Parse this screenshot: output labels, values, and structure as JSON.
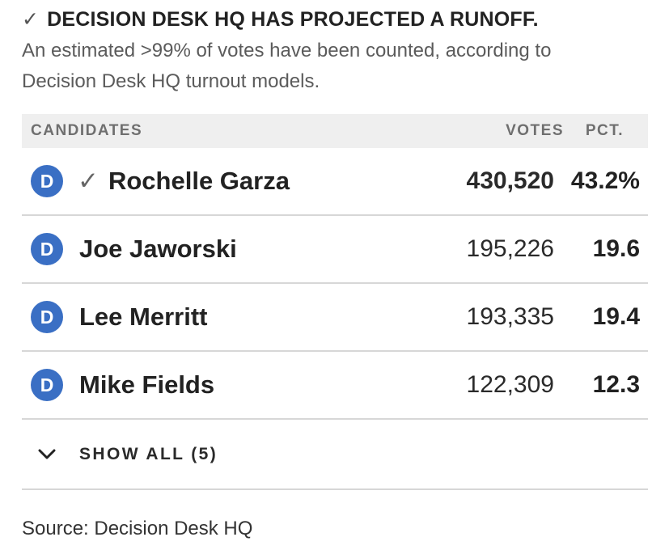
{
  "banner": {
    "check": "✓",
    "headline": "DECISION DESK HQ HAS PROJECTED A RUNOFF.",
    "subtext": "An estimated >99% of votes have been counted, according to Decision Desk HQ turnout models."
  },
  "table": {
    "headers": {
      "candidates": "CANDIDATES",
      "votes": "VOTES",
      "pct": "PCT."
    },
    "rows": [
      {
        "party": "D",
        "winner_mark": "✓",
        "name": "Rochelle Garza",
        "votes": "430,520",
        "pct": "43.2%"
      },
      {
        "party": "D",
        "name": "Joe Jaworski",
        "votes": "195,226",
        "pct": "19.6"
      },
      {
        "party": "D",
        "name": "Lee Merritt",
        "votes": "193,335",
        "pct": "19.4"
      },
      {
        "party": "D",
        "name": "Mike Fields",
        "votes": "122,309",
        "pct": "12.3"
      }
    ],
    "show_all": "SHOW ALL (5)"
  },
  "source": "Source: Decision Desk HQ",
  "colors": {
    "democrat": "#3a6fc4",
    "header_bg": "#efefef"
  }
}
